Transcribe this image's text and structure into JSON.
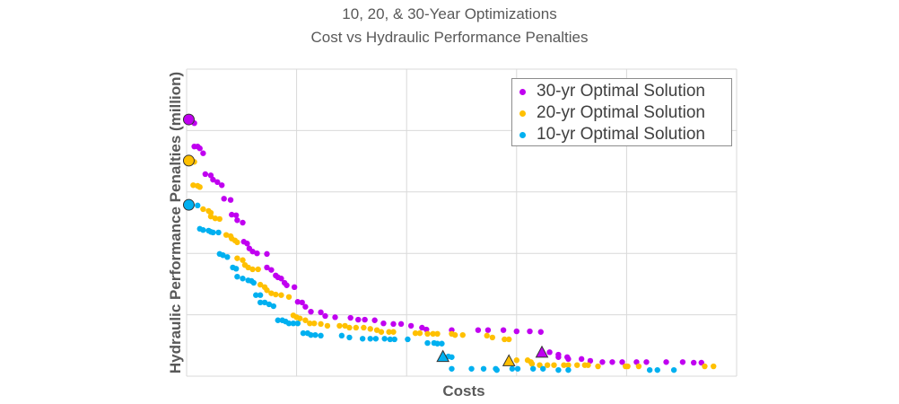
{
  "chart_data": {
    "type": "scatter",
    "title": "10, 20, & 30-Year Optimizations",
    "subtitle": "Cost vs Hydraulic Performance Penalties",
    "xlabel": "Costs",
    "ylabel": "Hydraulic Performance Penalties (million)",
    "xlim": [
      0,
      5
    ],
    "ylim": [
      0,
      5
    ],
    "grid": true,
    "tick_labels_shown": false,
    "legend_position": "top-right",
    "series": [
      {
        "name": "30-yr Optimal Solution",
        "color": "#C000F0",
        "start_marker": [
          0.02,
          4.18
        ],
        "triangle_marker": [
          3.23,
          0.39
        ],
        "points": [
          [
            0.07,
            4.12
          ],
          [
            0.07,
            3.74
          ],
          [
            0.1,
            3.74
          ],
          [
            0.12,
            3.71
          ],
          [
            0.15,
            3.63
          ],
          [
            0.17,
            3.29
          ],
          [
            0.22,
            3.27
          ],
          [
            0.24,
            3.2
          ],
          [
            0.28,
            3.16
          ],
          [
            0.32,
            3.11
          ],
          [
            0.34,
            2.89
          ],
          [
            0.4,
            2.87
          ],
          [
            0.41,
            2.63
          ],
          [
            0.45,
            2.62
          ],
          [
            0.46,
            2.54
          ],
          [
            0.51,
            2.5
          ],
          [
            0.52,
            2.19
          ],
          [
            0.55,
            2.16
          ],
          [
            0.57,
            2.08
          ],
          [
            0.6,
            2.03
          ],
          [
            0.64,
            2.0
          ],
          [
            0.73,
            1.99
          ],
          [
            0.73,
            1.77
          ],
          [
            0.77,
            1.73
          ],
          [
            0.81,
            1.64
          ],
          [
            0.83,
            1.61
          ],
          [
            0.86,
            1.59
          ],
          [
            0.89,
            1.52
          ],
          [
            0.91,
            1.48
          ],
          [
            0.98,
            1.45
          ],
          [
            1.01,
            1.21
          ],
          [
            1.05,
            1.2
          ],
          [
            1.08,
            1.13
          ],
          [
            1.13,
            1.05
          ],
          [
            1.22,
            1.04
          ],
          [
            1.26,
            0.98
          ],
          [
            1.35,
            0.96
          ],
          [
            1.49,
            0.95
          ],
          [
            1.56,
            0.92
          ],
          [
            1.62,
            0.92
          ],
          [
            1.71,
            0.91
          ],
          [
            1.79,
            0.86
          ],
          [
            1.88,
            0.85
          ],
          [
            1.95,
            0.85
          ],
          [
            2.04,
            0.82
          ],
          [
            2.14,
            0.79
          ],
          [
            2.18,
            0.76
          ],
          [
            2.41,
            0.75
          ],
          [
            2.65,
            0.75
          ],
          [
            2.74,
            0.75
          ],
          [
            2.88,
            0.75
          ],
          [
            3.0,
            0.73
          ],
          [
            3.12,
            0.73
          ],
          [
            3.22,
            0.72
          ],
          [
            3.3,
            0.39
          ],
          [
            3.38,
            0.35
          ],
          [
            3.38,
            0.31
          ],
          [
            3.46,
            0.31
          ],
          [
            3.47,
            0.28
          ],
          [
            3.59,
            0.28
          ],
          [
            3.67,
            0.25
          ],
          [
            3.78,
            0.23
          ],
          [
            3.87,
            0.23
          ],
          [
            3.96,
            0.23
          ],
          [
            4.09,
            0.23
          ],
          [
            4.18,
            0.23
          ],
          [
            4.36,
            0.23
          ],
          [
            4.51,
            0.23
          ],
          [
            4.61,
            0.22
          ],
          [
            4.68,
            0.22
          ]
        ]
      },
      {
        "name": "20-yr Optimal Solution",
        "color": "#FFC000",
        "start_marker": [
          0.02,
          3.51
        ],
        "triangle_marker": [
          2.93,
          0.25
        ],
        "points": [
          [
            0.07,
            3.49
          ],
          [
            0.06,
            3.11
          ],
          [
            0.1,
            3.1
          ],
          [
            0.12,
            3.08
          ],
          [
            0.15,
            2.72
          ],
          [
            0.2,
            2.69
          ],
          [
            0.22,
            2.66
          ],
          [
            0.22,
            2.6
          ],
          [
            0.26,
            2.57
          ],
          [
            0.3,
            2.56
          ],
          [
            0.36,
            2.3
          ],
          [
            0.4,
            2.28
          ],
          [
            0.41,
            2.24
          ],
          [
            0.44,
            2.21
          ],
          [
            0.46,
            2.18
          ],
          [
            0.46,
            1.92
          ],
          [
            0.51,
            1.89
          ],
          [
            0.53,
            1.81
          ],
          [
            0.56,
            1.77
          ],
          [
            0.6,
            1.74
          ],
          [
            0.65,
            1.74
          ],
          [
            0.67,
            1.49
          ],
          [
            0.71,
            1.45
          ],
          [
            0.73,
            1.4
          ],
          [
            0.77,
            1.35
          ],
          [
            0.81,
            1.33
          ],
          [
            0.86,
            1.32
          ],
          [
            0.93,
            1.29
          ],
          [
            0.97,
            0.99
          ],
          [
            1.0,
            0.96
          ],
          [
            1.03,
            0.94
          ],
          [
            1.08,
            0.91
          ],
          [
            1.12,
            0.86
          ],
          [
            1.16,
            0.86
          ],
          [
            1.22,
            0.85
          ],
          [
            1.28,
            0.82
          ],
          [
            1.39,
            0.82
          ],
          [
            1.44,
            0.82
          ],
          [
            1.48,
            0.79
          ],
          [
            1.54,
            0.79
          ],
          [
            1.61,
            0.79
          ],
          [
            1.67,
            0.77
          ],
          [
            1.73,
            0.75
          ],
          [
            1.77,
            0.72
          ],
          [
            1.84,
            0.72
          ],
          [
            1.88,
            0.72
          ],
          [
            2.08,
            0.7
          ],
          [
            2.12,
            0.7
          ],
          [
            2.19,
            0.69
          ],
          [
            2.24,
            0.69
          ],
          [
            2.28,
            0.69
          ],
          [
            2.41,
            0.69
          ],
          [
            2.44,
            0.67
          ],
          [
            2.51,
            0.67
          ],
          [
            2.73,
            0.66
          ],
          [
            2.78,
            0.63
          ],
          [
            2.89,
            0.6
          ],
          [
            2.93,
            0.6
          ],
          [
            3.0,
            0.26
          ],
          [
            3.1,
            0.26
          ],
          [
            3.13,
            0.23
          ],
          [
            3.14,
            0.2
          ],
          [
            3.21,
            0.18
          ],
          [
            3.28,
            0.18
          ],
          [
            3.34,
            0.18
          ],
          [
            3.43,
            0.18
          ],
          [
            3.47,
            0.18
          ],
          [
            3.55,
            0.18
          ],
          [
            3.62,
            0.18
          ],
          [
            3.65,
            0.18
          ],
          [
            3.74,
            0.16
          ],
          [
            3.99,
            0.16
          ],
          [
            4.01,
            0.16
          ],
          [
            4.11,
            0.16
          ],
          [
            4.71,
            0.16
          ],
          [
            4.79,
            0.16
          ]
        ]
      },
      {
        "name": "10-yr Optimal Solution",
        "color": "#00B0F0",
        "start_marker": [
          0.02,
          2.79
        ],
        "triangle_marker": [
          2.33,
          0.32
        ],
        "points": [
          [
            0.1,
            2.78
          ],
          [
            0.12,
            2.4
          ],
          [
            0.15,
            2.38
          ],
          [
            0.2,
            2.37
          ],
          [
            0.22,
            2.35
          ],
          [
            0.24,
            2.34
          ],
          [
            0.29,
            2.34
          ],
          [
            0.3,
            1.99
          ],
          [
            0.33,
            1.97
          ],
          [
            0.37,
            1.94
          ],
          [
            0.42,
            1.77
          ],
          [
            0.45,
            1.75
          ],
          [
            0.46,
            1.62
          ],
          [
            0.51,
            1.59
          ],
          [
            0.56,
            1.56
          ],
          [
            0.59,
            1.55
          ],
          [
            0.61,
            1.52
          ],
          [
            0.63,
            1.32
          ],
          [
            0.67,
            1.32
          ],
          [
            0.67,
            1.2
          ],
          [
            0.71,
            1.2
          ],
          [
            0.75,
            1.17
          ],
          [
            0.79,
            1.14
          ],
          [
            0.83,
            0.91
          ],
          [
            0.87,
            0.91
          ],
          [
            0.9,
            0.89
          ],
          [
            0.93,
            0.86
          ],
          [
            0.97,
            0.86
          ],
          [
            1.01,
            0.86
          ],
          [
            1.06,
            0.7
          ],
          [
            1.1,
            0.7
          ],
          [
            1.13,
            0.67
          ],
          [
            1.17,
            0.67
          ],
          [
            1.22,
            0.66
          ],
          [
            1.41,
            0.66
          ],
          [
            1.48,
            0.63
          ],
          [
            1.6,
            0.61
          ],
          [
            1.67,
            0.61
          ],
          [
            1.72,
            0.61
          ],
          [
            1.8,
            0.61
          ],
          [
            1.85,
            0.6
          ],
          [
            1.89,
            0.6
          ],
          [
            2.01,
            0.6
          ],
          [
            2.19,
            0.54
          ],
          [
            2.25,
            0.54
          ],
          [
            2.28,
            0.53
          ],
          [
            2.32,
            0.53
          ],
          [
            2.38,
            0.32
          ],
          [
            2.41,
            0.31
          ],
          [
            2.41,
            0.12
          ],
          [
            2.59,
            0.12
          ],
          [
            2.7,
            0.12
          ],
          [
            2.81,
            0.12
          ],
          [
            2.82,
            0.1
          ],
          [
            2.96,
            0.12
          ],
          [
            3.01,
            0.12
          ],
          [
            3.15,
            0.12
          ],
          [
            3.24,
            0.12
          ],
          [
            3.38,
            0.1
          ],
          [
            3.47,
            0.1
          ],
          [
            4.21,
            0.1
          ],
          [
            4.28,
            0.1
          ],
          [
            4.43,
            0.1
          ]
        ]
      }
    ]
  }
}
